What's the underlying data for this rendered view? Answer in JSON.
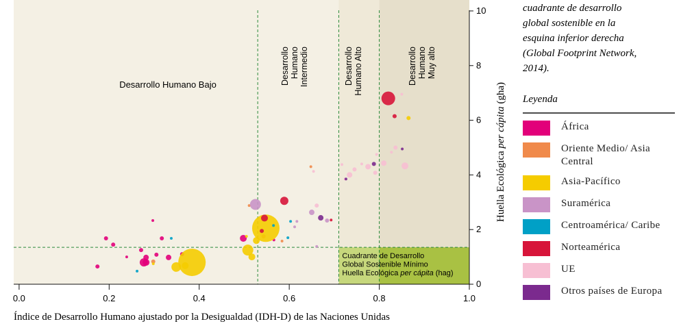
{
  "chart_data": {
    "type": "scatter",
    "xlabel": "Índice de Desarrollo Humano ajustado por la Desigualdad (IDH-D) de las Naciones Unidas",
    "ylabel": [
      "Huella Ecológica",
      "per cápita",
      "(gha)"
    ],
    "xlim": [
      -0.012,
      1.0
    ],
    "ylim": [
      0,
      10.4
    ],
    "xticks": [
      {
        "value": 0,
        "label": "0.0"
      },
      0.2,
      0.4,
      0.6,
      0.8,
      {
        "value": 1,
        "label": "1.0"
      }
    ],
    "yticks": [
      0,
      2,
      4,
      6,
      8,
      10
    ],
    "hdi_thresholds": [
      0.53,
      0.71,
      0.8
    ],
    "footprint_threshold": 1.35,
    "regions": [
      {
        "lines": [
          "Desarrollo Humano Bajo"
        ]
      },
      {
        "lines": [
          "Desarrollo",
          "Humano",
          "Intermedio"
        ]
      },
      {
        "lines": [
          "Desarrollo",
          "Humano Alto"
        ]
      },
      {
        "lines": [
          "Desarrollo",
          "Humano",
          "Muy alto"
        ]
      }
    ],
    "box_label": {
      "lines": [
        "Cuadrante de Desarrollo",
        "Global Sostenible Mínimo"
      ],
      "last": [
        "Huella Ecológica",
        "per cápita",
        "(hag)"
      ]
    },
    "series": [
      {
        "name": "África",
        "color": "#e2007a",
        "x": [
          0.277,
          0.282,
          0.209,
          0.193,
          0.174,
          0.305,
          0.317,
          0.332,
          0.271,
          0.297,
          0.239,
          0.498,
          0.566,
          0.362,
          0.282
        ],
        "values": [
          0.8,
          0.98,
          1.45,
          1.68,
          0.65,
          1.08,
          1.68,
          0.98,
          1.25,
          2.33,
          1.0,
          1.68,
          1.62,
          1.1,
          0.8
        ],
        "sizes": [
          6,
          4,
          3,
          3,
          3,
          3,
          3,
          4,
          3,
          2,
          2,
          5,
          2,
          3,
          5
        ]
      },
      {
        "name": "Oriente Medio/ Asia Central",
        "color": "#f08a4b",
        "x": [
          0.298,
          0.648,
          0.511,
          0.584,
          0.543
        ],
        "values": [
          0.83,
          4.3,
          2.88,
          1.58,
          1.75
        ],
        "sizes": [
          3,
          2,
          2,
          2,
          3
        ]
      },
      {
        "name": "Asia-Pacífico",
        "color": "#f5cc00",
        "x": [
          0.384,
          0.548,
          0.508,
          0.349,
          0.369,
          0.527,
          0.517,
          0.865,
          0.298,
          0.505
        ],
        "values": [
          0.8,
          2.05,
          1.25,
          0.63,
          0.68,
          1.6,
          1.0,
          6.08,
          0.75,
          1.75
        ],
        "sizes": [
          20,
          20,
          8,
          7,
          5,
          5,
          5,
          3,
          2,
          2
        ]
      },
      {
        "name": "Suramérica",
        "color": "#c994c7",
        "x": [
          0.525,
          0.65,
          0.684,
          0.617,
          0.661,
          0.612
        ],
        "values": [
          2.92,
          2.63,
          2.33,
          2.3,
          1.38,
          2.1
        ],
        "sizes": [
          8,
          4,
          3,
          2,
          2,
          2
        ]
      },
      {
        "name": "Centroamérica/ Caribe",
        "color": "#00a0c6",
        "x": [
          0.262,
          0.338,
          0.603,
          0.565,
          0.597
        ],
        "values": [
          0.48,
          1.68,
          2.3,
          2.15,
          1.7
        ],
        "sizes": [
          2,
          2,
          2,
          2,
          2
        ]
      },
      {
        "name": "Norteamérica",
        "color": "#d7153a",
        "x": [
          0.82,
          0.589,
          0.545,
          0.834,
          0.539,
          0.693
        ],
        "values": [
          6.8,
          3.05,
          2.42,
          6.15,
          1.95,
          2.35
        ],
        "sizes": [
          10,
          6,
          5,
          3,
          3,
          2
        ]
      },
      {
        "name": "UE",
        "color": "#f7bfd3",
        "x": [
          0.857,
          0.81,
          0.775,
          0.745,
          0.734,
          0.717,
          0.85,
          0.836,
          0.827,
          0.791,
          0.724,
          0.661,
          0.654,
          0.761,
          0.794
        ],
        "values": [
          4.33,
          4.43,
          4.3,
          4.2,
          4.0,
          4.38,
          6.95,
          5.0,
          4.83,
          4.08,
          3.85,
          2.88,
          4.13,
          4.4,
          4.75
        ],
        "sizes": [
          5,
          4,
          4,
          3,
          4,
          2,
          2,
          3,
          2,
          3,
          2,
          3,
          2,
          2,
          2
        ]
      },
      {
        "name": "Otros países de Europa",
        "color": "#7b2a8e",
        "x": [
          0.67,
          0.788,
          0.726,
          0.851
        ],
        "values": [
          2.43,
          4.4,
          3.85,
          4.95
        ],
        "sizes": [
          4,
          3,
          2,
          2
        ]
      }
    ],
    "note": [
      "cuadrante de desarrollo",
      "global sostenible en la",
      "esquina inferior derecha",
      "(Global Footprint Network,",
      "2014)."
    ],
    "legend_title": "Leyenda"
  }
}
